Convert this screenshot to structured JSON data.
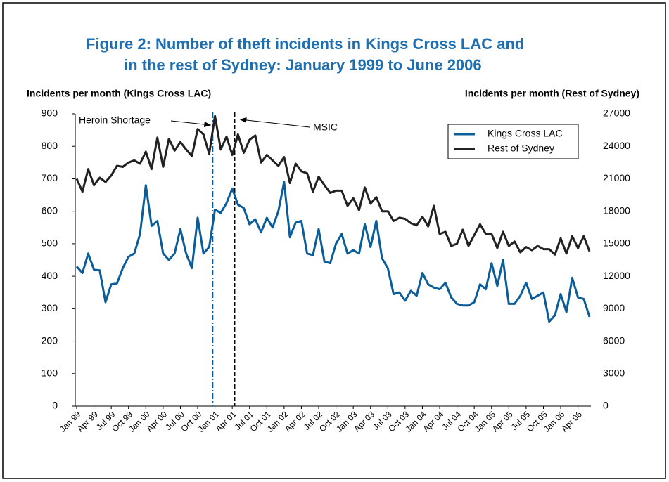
{
  "chart_data": {
    "type": "line",
    "title": [
      "Figure 2: Number of theft incidents in Kings Cross LAC and",
      "in the rest of Sydney: January 1999 to June 2006"
    ],
    "y_label": "Incidents per month (Kings Cross LAC)",
    "y2_label": "Incidents per month (Rest of Sydney)",
    "annotations": [
      "Heroin Shortage",
      "MSIC"
    ],
    "categories": [
      "Jan 99",
      null,
      null,
      "Apr 99",
      null,
      null,
      "Jul 99",
      null,
      null,
      "Oct 99",
      null,
      null,
      "Jan 00",
      null,
      null,
      "Apr 00",
      null,
      null,
      "Jul 00",
      null,
      null,
      "Oct 00",
      null,
      null,
      "Jan 01",
      null,
      null,
      "Apr 01",
      null,
      null,
      "Jul 01",
      null,
      null,
      "Oct 01",
      null,
      null,
      "Jan 02",
      null,
      null,
      "Apr 02",
      null,
      null,
      "Jul 02",
      null,
      null,
      "Oct 02",
      null,
      null,
      "Jan 03",
      null,
      null,
      "Apr 03",
      null,
      null,
      "Jul 03",
      null,
      null,
      "Oct 03",
      null,
      null,
      "Jan 04",
      null,
      null,
      "Apr 04",
      null,
      null,
      "Jul 04",
      null,
      null,
      "Oct 04",
      null,
      null,
      "Jan 05",
      null,
      null,
      "Apr 05",
      null,
      null,
      "Jul 05",
      null,
      null,
      "Oct 05",
      null,
      null,
      "Jan 06",
      null,
      null,
      "Apr 06",
      null,
      null
    ],
    "series": [
      {
        "name": "Kings Cross LAC",
        "color": "#0b5d9a",
        "axis": "y",
        "values": [
          430,
          410,
          470,
          420,
          418,
          320,
          375,
          378,
          425,
          460,
          470,
          530,
          680,
          555,
          570,
          470,
          450,
          470,
          545,
          470,
          425,
          580,
          470,
          490,
          605,
          595,
          625,
          670,
          620,
          610,
          560,
          575,
          535,
          580,
          550,
          600,
          690,
          520,
          565,
          570,
          470,
          465,
          545,
          445,
          440,
          500,
          530,
          470,
          480,
          470,
          560,
          490,
          570,
          455,
          425,
          345,
          350,
          325,
          355,
          340,
          410,
          375,
          365,
          360,
          380,
          335,
          315,
          310,
          310,
          320,
          375,
          360,
          440,
          370,
          450,
          315,
          315,
          340,
          380,
          330,
          340,
          350,
          260,
          280,
          345,
          290,
          395,
          335,
          330,
          275
        ]
      },
      {
        "name": "Rest of Sydney",
        "color": "#222222",
        "axis": "y2",
        "values": [
          21000,
          19800,
          21900,
          20400,
          21100,
          20700,
          21300,
          22200,
          22100,
          22500,
          22700,
          22400,
          23500,
          21900,
          24800,
          22100,
          24700,
          23600,
          24400,
          23700,
          23100,
          25600,
          25100,
          23300,
          26800,
          23700,
          24900,
          23200,
          25100,
          23400,
          24600,
          25000,
          22500,
          23200,
          22700,
          22200,
          23000,
          20600,
          22400,
          21700,
          21500,
          19800,
          21200,
          20400,
          19700,
          19900,
          19900,
          18500,
          19200,
          18100,
          20200,
          18700,
          19300,
          18000,
          18000,
          17100,
          17400,
          17300,
          16900,
          16700,
          17500,
          16600,
          18500,
          15900,
          16100,
          14800,
          15000,
          16300,
          14800,
          15800,
          16800,
          15900,
          15900,
          14600,
          16100,
          14800,
          15200,
          14200,
          14700,
          14400,
          14800,
          14500,
          14500,
          14000,
          15500,
          14100,
          15700,
          14600,
          15700,
          14300
        ]
      }
    ],
    "ylim": [
      0,
      900
    ],
    "yticks": [
      0,
      100,
      200,
      300,
      400,
      500,
      600,
      700,
      800,
      900
    ],
    "y2lim": [
      0,
      27000
    ],
    "y2ticks": [
      0,
      3000,
      6000,
      9000,
      12000,
      15000,
      18000,
      21000,
      24000,
      27000
    ],
    "legend": "upper right"
  }
}
